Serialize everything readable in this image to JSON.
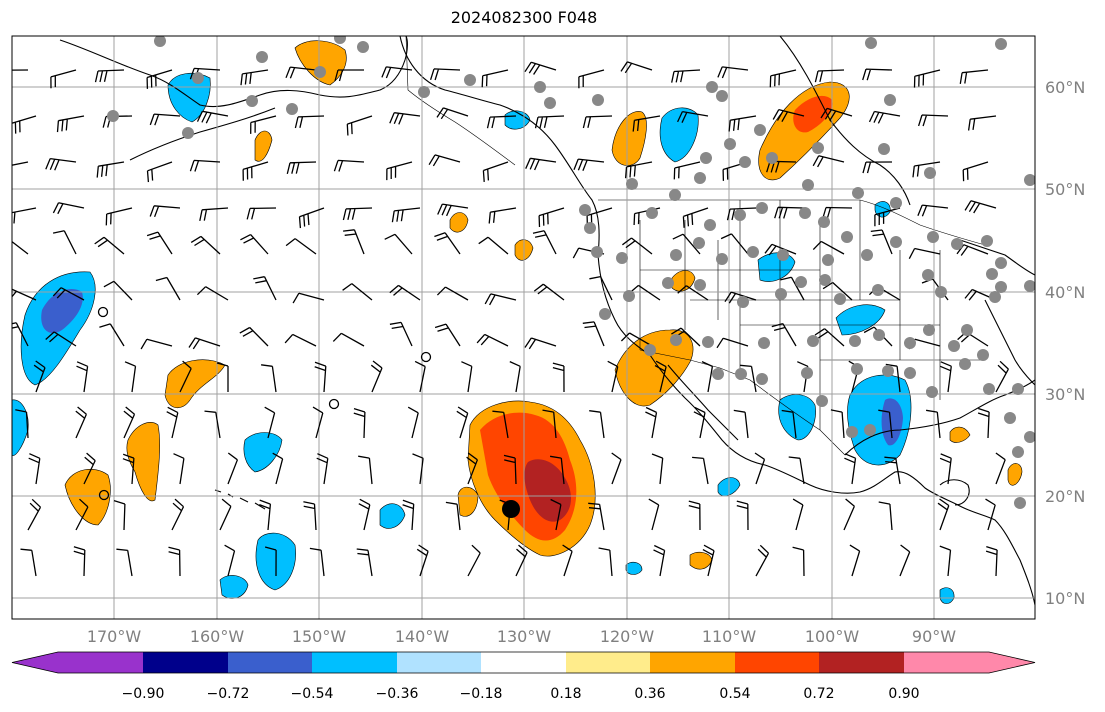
{
  "title": "2024082300 F048",
  "latitude_labels": [
    "60°N",
    "50°N",
    "40°N",
    "30°N",
    "20°N",
    "10°N"
  ],
  "longitude_labels": [
    "170°W",
    "160°W",
    "150°W",
    "140°W",
    "130°W",
    "120°W",
    "110°W",
    "100°W",
    "90°W"
  ],
  "colorbar": {
    "tick_labels": [
      "−0.90",
      "−0.72",
      "−0.54",
      "−0.36",
      "−0.18",
      "0.18",
      "0.36",
      "0.54",
      "0.72",
      "0.90"
    ],
    "colors": [
      "#9932cc",
      "#00008b",
      "#3a5fcd",
      "#00bfff",
      "#b0e2ff",
      "#ffffff",
      "#ffec8b",
      "#ffa500",
      "#ff4500",
      "#b22222",
      "#ff88aa"
    ],
    "extend": "both"
  },
  "fill_colors": {
    "light_blue": "#b0e2ff",
    "blue": "#00bfff",
    "mid_blue": "#3a5fcd",
    "yellow": "#ffec8b",
    "orange": "#ffa500",
    "red_orange": "#ff4500",
    "dark_red": "#b22222",
    "station": "#888888",
    "marker": "#000000"
  }
}
